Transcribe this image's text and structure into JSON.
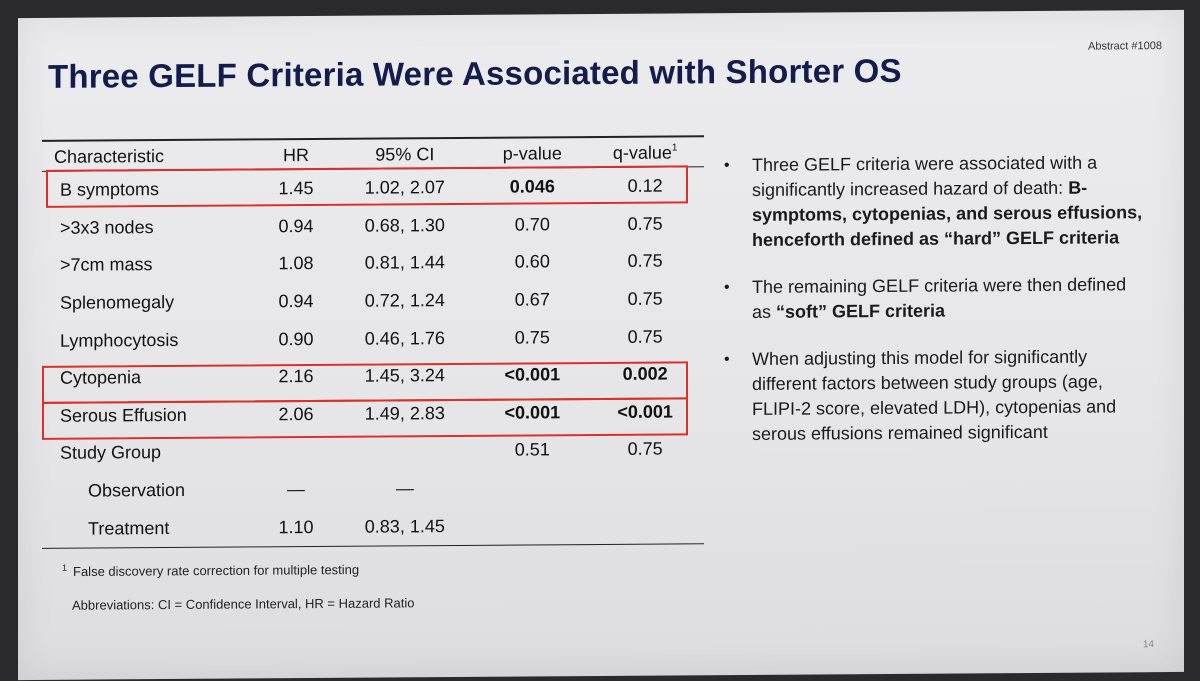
{
  "slide": {
    "abstract": "Abstract #1008",
    "title": "Three GELF Criteria Were Associated with Shorter OS",
    "page_number": "14"
  },
  "table": {
    "headers": [
      "Characteristic",
      "HR",
      "95% CI",
      "p-value",
      "q-value",
      "1"
    ],
    "rows": [
      {
        "label": "B symptoms",
        "hr": "1.45",
        "ci": "1.02, 2.07",
        "p": "0.046",
        "q": "0.12"
      },
      {
        "label": ">3x3 nodes",
        "hr": "0.94",
        "ci": "0.68, 1.30",
        "p": "0.70",
        "q": "0.75"
      },
      {
        "label": ">7cm mass",
        "hr": "1.08",
        "ci": "0.81, 1.44",
        "p": "0.60",
        "q": "0.75"
      },
      {
        "label": "Splenomegaly",
        "hr": "0.94",
        "ci": "0.72, 1.24",
        "p": "0.67",
        "q": "0.75"
      },
      {
        "label": "Lymphocytosis",
        "hr": "0.90",
        "ci": "0.46, 1.76",
        "p": "0.75",
        "q": "0.75"
      },
      {
        "label": "Cytopenia",
        "hr": "2.16",
        "ci": "1.45, 3.24",
        "p": "<0.001",
        "q": "0.002"
      },
      {
        "label": "Serous Effusion",
        "hr": "2.06",
        "ci": "1.49, 2.83",
        "p": "<0.001",
        "q": "<0.001"
      },
      {
        "label": "Study Group",
        "hr": "",
        "ci": "",
        "p": "0.51",
        "q": "0.75"
      },
      {
        "label": "Observation",
        "hr": "—",
        "ci": "—",
        "p": "",
        "q": ""
      },
      {
        "label": "Treatment",
        "hr": "1.10",
        "ci": "0.83, 1.45",
        "p": "",
        "q": ""
      }
    ],
    "footnote_mark": "1",
    "footnote": "False discovery rate correction for multiple testing",
    "abbreviations": "Abbreviations: CI = Confidence Interval, HR = Hazard Ratio"
  },
  "bullets": {
    "b1_text": "Three GELF criteria were associated with a significantly increased hazard of death: ",
    "b1_bold": "B-symptoms, cytopenias, and serous effusions, henceforth defined as “hard” GELF criteria",
    "b2_text": "The remaining GELF criteria were then defined as ",
    "b2_bold": "“soft” GELF criteria",
    "b3_text": "When adjusting this model for significantly different factors between study groups (age, FLIPI-2 score, elevated LDH), cytopenias and serous effusions remained significant"
  },
  "colors": {
    "title": "#141b4d",
    "highlight": "#d8322a"
  }
}
